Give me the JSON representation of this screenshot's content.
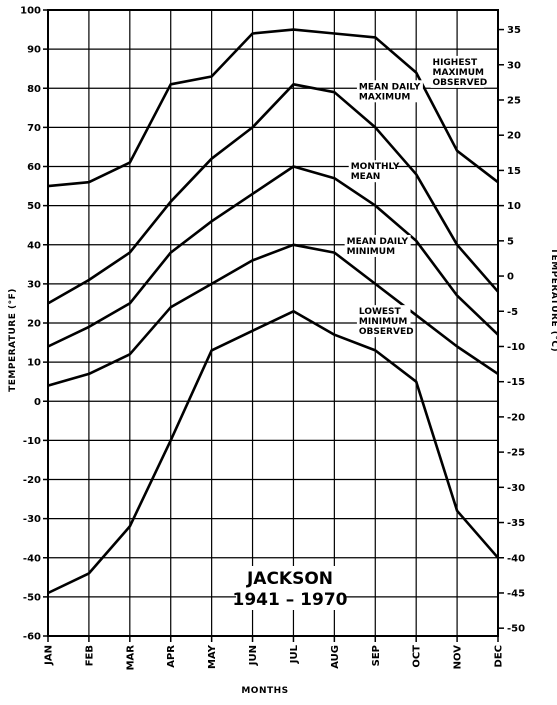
{
  "chart_data": {
    "type": "line",
    "title": "",
    "station": "JACKSON",
    "period": "1941 – 1970",
    "xlabel": "MONTHS",
    "ylabel": "TEMPERATURE (°F)",
    "ylabel_right": "TEMPERATURE (°C)",
    "categories": [
      "JAN",
      "FEB",
      "MAR",
      "APR",
      "MAY",
      "JUN",
      "JUL",
      "AUG",
      "SEP",
      "OCT",
      "NOV",
      "DEC"
    ],
    "ylim": [
      -60,
      100
    ],
    "yticks": [
      100,
      90,
      80,
      70,
      60,
      50,
      40,
      30,
      20,
      10,
      0,
      -10,
      -20,
      -30,
      -40,
      -50,
      -60
    ],
    "ylim_right": [
      -50,
      35
    ],
    "yticks_right": [
      35,
      30,
      25,
      20,
      15,
      10,
      5,
      0,
      -5,
      -10,
      -15,
      -20,
      -25,
      -30,
      -35,
      -40,
      -45,
      -50
    ],
    "grid": true,
    "series": [
      {
        "name": "HIGHEST MAXIMUM OBSERVED",
        "label_lines": [
          "HIGHEST",
          "MAXIMUM",
          "OBSERVED"
        ],
        "values": [
          55,
          56,
          61,
          81,
          83,
          94,
          95,
          94,
          93,
          84,
          64,
          56
        ]
      },
      {
        "name": "MEAN DAILY MAXIMUM",
        "label_lines": [
          "MEAN DAILY",
          "MAXIMUM"
        ],
        "values": [
          25,
          31,
          38,
          51,
          62,
          70,
          81,
          79,
          70,
          58,
          40,
          28
        ]
      },
      {
        "name": "MONTHLY MEAN",
        "label_lines": [
          "MONTHLY",
          "MEAN"
        ],
        "values": [
          14,
          19,
          25,
          38,
          46,
          53,
          60,
          57,
          50,
          41,
          27,
          17
        ]
      },
      {
        "name": "MEAN DAILY MINIMUM",
        "label_lines": [
          "MEAN DAILY",
          "MINIMUM"
        ],
        "values": [
          4,
          7,
          12,
          24,
          30,
          36,
          40,
          38,
          30,
          22,
          14,
          7
        ]
      },
      {
        "name": "LOWEST MINIMUM OBSERVED",
        "label_lines": [
          "LOWEST",
          "MINIMUM",
          "OBSERVED"
        ],
        "values": [
          -49,
          -44,
          -32,
          -10,
          13,
          18,
          23,
          17,
          13,
          5,
          -28,
          -40
        ]
      }
    ]
  }
}
